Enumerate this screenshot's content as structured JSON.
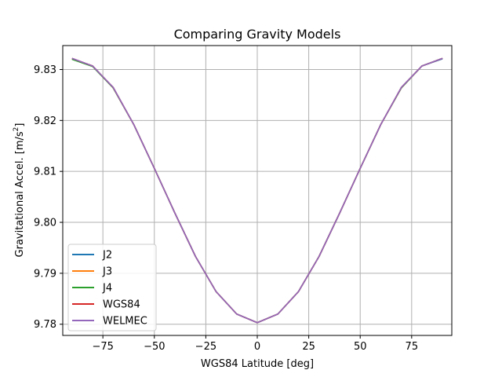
{
  "chart_data": {
    "type": "line",
    "title": "Comparing Gravity Models",
    "xlabel": "WGS84 Latitude [deg]",
    "ylabel": {
      "main": "Gravitational Accel. [m/s",
      "sup": "2",
      "tail": "]"
    },
    "xlim": [
      -94.5,
      94.5
    ],
    "ylim": [
      9.7778,
      9.8347
    ],
    "xticks": [
      -75,
      -50,
      -25,
      0,
      25,
      50,
      75
    ],
    "yticks": [
      9.78,
      9.79,
      9.8,
      9.81,
      9.82,
      9.83
    ],
    "xtick_labels": [
      "−75",
      "−50",
      "−25",
      "0",
      "25",
      "50",
      "75"
    ],
    "ytick_labels": [
      "9.78",
      "9.79",
      "9.80",
      "9.81",
      "9.82",
      "9.83"
    ],
    "grid": true,
    "legend_position": "lower-left",
    "x": [
      -90,
      -80,
      -70,
      -60,
      -50,
      -40,
      -30,
      -20,
      -10,
      0,
      10,
      20,
      30,
      40,
      50,
      60,
      70,
      80,
      90
    ],
    "series": [
      {
        "name": "J2",
        "color": "#1f77b4",
        "values": [
          9.8321,
          9.8307,
          9.8264,
          9.8192,
          9.8106,
          9.8018,
          9.7933,
          9.7864,
          9.782,
          9.7803,
          9.782,
          9.7864,
          9.7933,
          9.8018,
          9.8106,
          9.8192,
          9.8264,
          9.8307,
          9.8321
        ]
      },
      {
        "name": "J3",
        "color": "#ff7f0e",
        "values": [
          9.8321,
          9.8307,
          9.8264,
          9.8192,
          9.8106,
          9.8018,
          9.7933,
          9.7864,
          9.782,
          9.7803,
          9.782,
          9.7864,
          9.7933,
          9.8018,
          9.8106,
          9.8192,
          9.8264,
          9.8307,
          9.8322
        ]
      },
      {
        "name": "J4",
        "color": "#2ca02c",
        "values": [
          9.832,
          9.8306,
          9.8264,
          9.8192,
          9.8106,
          9.8018,
          9.7933,
          9.7864,
          9.782,
          9.7803,
          9.782,
          9.7864,
          9.7933,
          9.8018,
          9.8106,
          9.8192,
          9.8264,
          9.8307,
          9.8322
        ]
      },
      {
        "name": "WGS84",
        "color": "#d62728",
        "values": [
          9.8322,
          9.8307,
          9.8265,
          9.8192,
          9.8106,
          9.8018,
          9.7933,
          9.7864,
          9.782,
          9.7803,
          9.782,
          9.7864,
          9.7933,
          9.8018,
          9.8106,
          9.8192,
          9.8265,
          9.8307,
          9.8322
        ]
      },
      {
        "name": "WELMEC",
        "color": "#9467bd",
        "values": [
          9.8322,
          9.8307,
          9.8265,
          9.8192,
          9.8106,
          9.8018,
          9.7933,
          9.7864,
          9.782,
          9.7803,
          9.782,
          9.7864,
          9.7933,
          9.8018,
          9.8106,
          9.8192,
          9.8265,
          9.8307,
          9.8322
        ]
      }
    ]
  }
}
